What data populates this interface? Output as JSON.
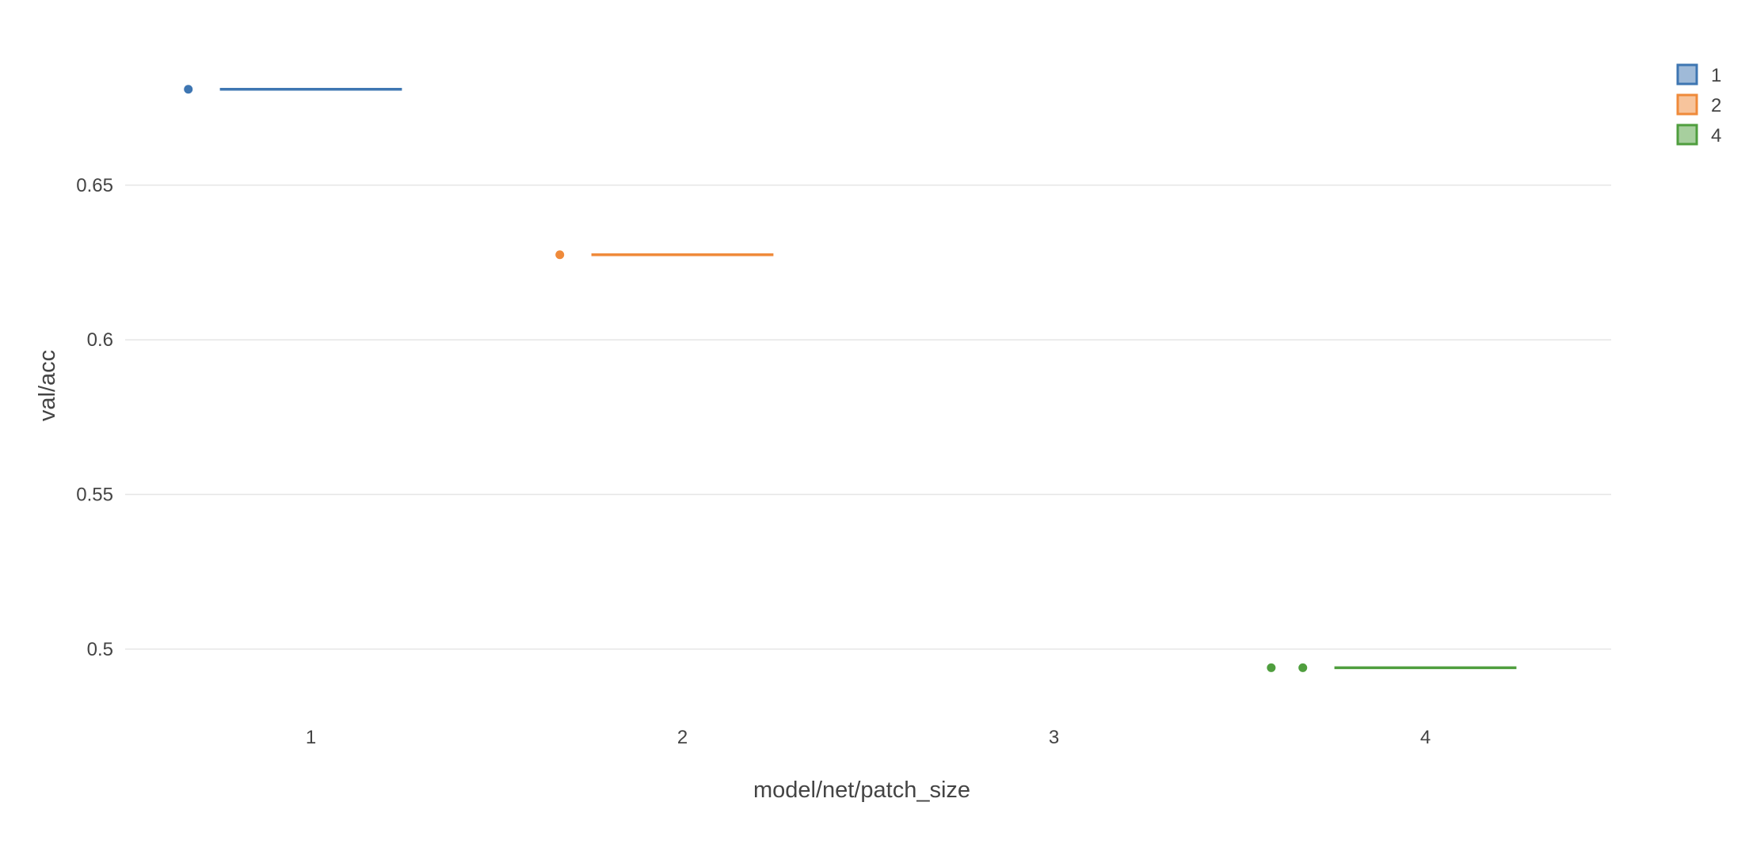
{
  "chart_data": {
    "type": "box",
    "title": "",
    "xlabel": "model/net/patch_size",
    "ylabel": "val/acc",
    "x_ticks": [
      "1",
      "2",
      "3",
      "4"
    ],
    "y_ticks": [
      0.5,
      0.55,
      0.6,
      0.65
    ],
    "y_tick_labels": [
      "0.5",
      "0.55",
      "0.6",
      "0.65"
    ],
    "xlim": [
      0.5,
      4.5
    ],
    "ylim": [
      0.4795,
      0.6945
    ],
    "grid": "horizontal",
    "legend_position": "top-right",
    "series": [
      {
        "name": "1",
        "x": 1,
        "color": "#3e76b2",
        "fill": "#9fbad8",
        "points": [
          0.681
        ],
        "median": 0.681
      },
      {
        "name": "2",
        "x": 2,
        "color": "#ef8a3a",
        "fill": "#f7c49c",
        "points": [
          0.6275
        ],
        "median": 0.6275
      },
      {
        "name": "4",
        "x": 4,
        "color": "#4f9e3e",
        "fill": "#a7cf9e",
        "points": [
          0.494,
          0.494
        ],
        "median": 0.494
      }
    ]
  }
}
